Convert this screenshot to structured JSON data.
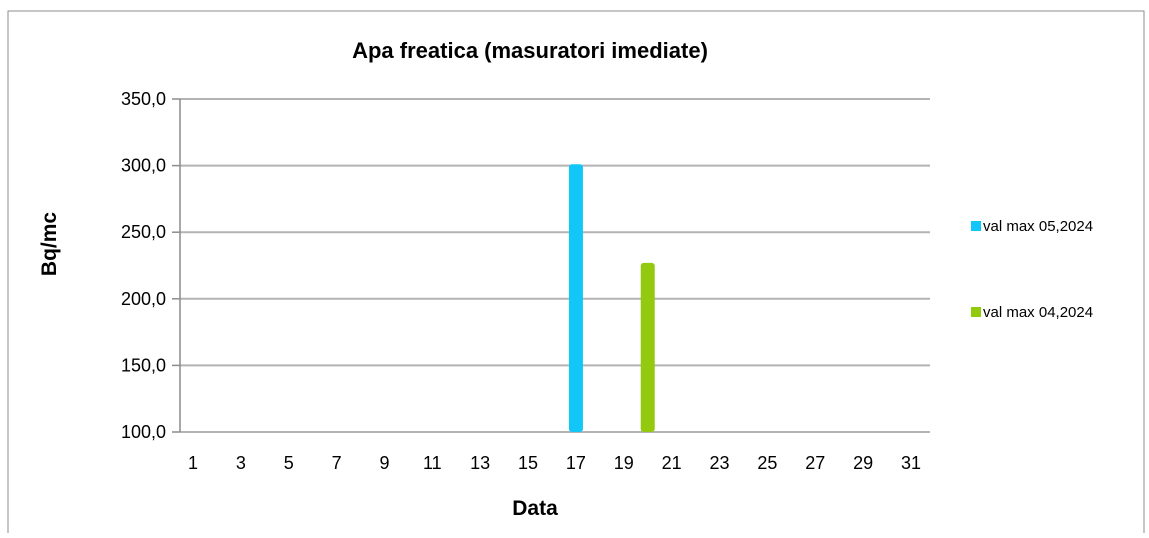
{
  "chart_data": {
    "type": "bar",
    "title": "Apa freatica (masuratori imediate)",
    "xlabel": "Data",
    "ylabel": "Bq/mc",
    "x_range": [
      1,
      31
    ],
    "x_ticks": [
      1,
      3,
      5,
      7,
      9,
      11,
      13,
      15,
      17,
      19,
      21,
      23,
      25,
      27,
      29,
      31
    ],
    "ylim": [
      100,
      350
    ],
    "y_ticks": [
      "100,0",
      "150,0",
      "200,0",
      "250,0",
      "300,0",
      "350,0"
    ],
    "y_tick_values": [
      100,
      150,
      200,
      250,
      300,
      350
    ],
    "grid": true,
    "legend_position": "right",
    "series": [
      {
        "name": "val max 05,2024",
        "color": "#12C6F7",
        "points": [
          {
            "x": 17,
            "y": 301
          }
        ]
      },
      {
        "name": "val max 04,2024",
        "color": "#93C90E",
        "points": [
          {
            "x": 20,
            "y": 227
          }
        ]
      }
    ]
  }
}
